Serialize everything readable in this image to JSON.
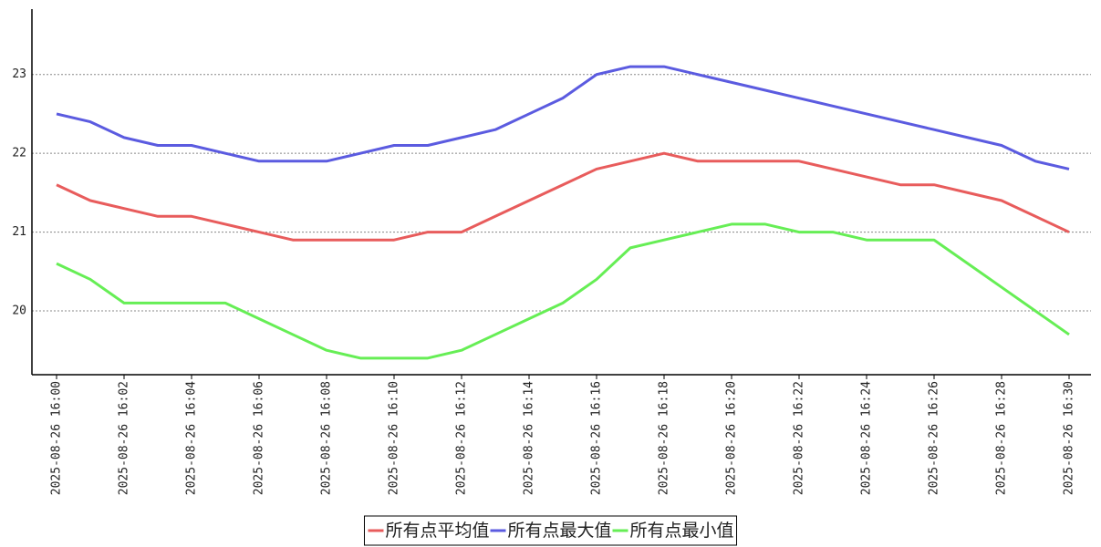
{
  "chart_data": {
    "type": "line",
    "categories": [
      "2025-08-26 16:00",
      null,
      "2025-08-26 16:02",
      null,
      "2025-08-26 16:04",
      null,
      "2025-08-26 16:06",
      null,
      "2025-08-26 16:08",
      null,
      "2025-08-26 16:10",
      null,
      "2025-08-26 16:12",
      null,
      "2025-08-26 16:14",
      null,
      "2025-08-26 16:16",
      null,
      "2025-08-26 16:18",
      null,
      "2025-08-26 16:20",
      null,
      "2025-08-26 16:22",
      null,
      "2025-08-26 16:24",
      null,
      "2025-08-26 16:26",
      null,
      "2025-08-26 16:28",
      null,
      "2025-08-26 16:30"
    ],
    "series": [
      {
        "name": "所有点平均值",
        "color": "#e85c5c",
        "values": [
          21.6,
          21.4,
          21.3,
          21.2,
          21.2,
          21.1,
          21.0,
          20.9,
          20.9,
          20.9,
          20.9,
          21.0,
          21.0,
          21.2,
          21.4,
          21.6,
          21.8,
          21.9,
          22.0,
          21.9,
          21.9,
          21.9,
          21.9,
          21.8,
          21.7,
          21.6,
          21.6,
          21.5,
          21.4,
          21.2,
          21.0
        ]
      },
      {
        "name": "所有点最大值",
        "color": "#5b5be0",
        "values": [
          22.5,
          22.4,
          22.2,
          22.1,
          22.1,
          22.0,
          21.9,
          21.9,
          21.9,
          22.0,
          22.1,
          22.1,
          22.2,
          22.3,
          22.5,
          22.7,
          23.0,
          23.1,
          23.1,
          23.0,
          22.9,
          22.8,
          22.7,
          22.6,
          22.5,
          22.4,
          22.3,
          22.2,
          22.1,
          21.9,
          21.8
        ]
      },
      {
        "name": "所有点最小值",
        "color": "#66ee55",
        "values": [
          20.6,
          20.4,
          20.1,
          20.1,
          20.1,
          20.1,
          19.9,
          19.7,
          19.5,
          19.4,
          19.4,
          19.4,
          19.5,
          19.7,
          19.9,
          20.1,
          20.4,
          20.8,
          20.9,
          21.0,
          21.1,
          21.1,
          21.0,
          21.0,
          20.9,
          20.9,
          20.9,
          20.6,
          20.3,
          20.0,
          19.7
        ]
      }
    ],
    "ylim": [
      19.19,
      23.83
    ],
    "yticks": [
      20,
      21,
      22,
      23
    ],
    "grid": true,
    "legend": "bottom"
  }
}
